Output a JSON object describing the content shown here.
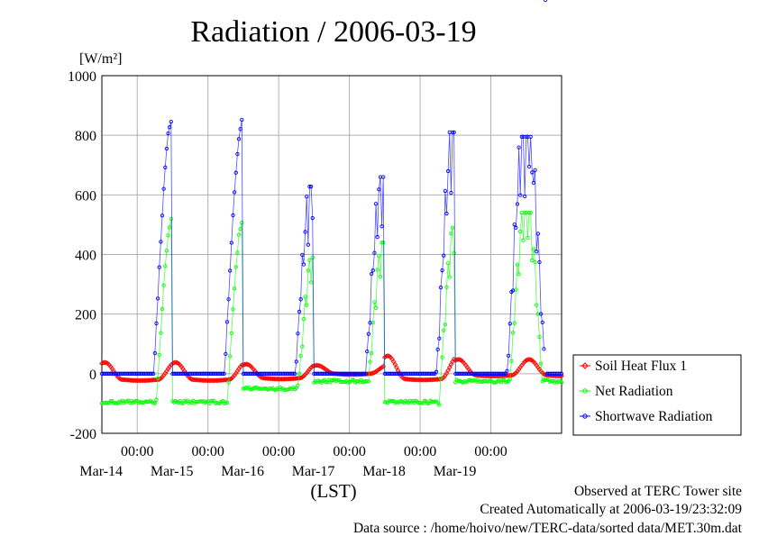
{
  "chart_data": {
    "type": "line",
    "title": "Radiation / 2006-03-19",
    "ylabel": "[W/m²]",
    "xlabel": "(LST)",
    "ylim": [
      -200,
      1000
    ],
    "y_ticks": [
      "1000",
      "800",
      "600",
      "400",
      "200",
      "0",
      "-200"
    ],
    "x_time_ticks": [
      "00:00",
      "00:00",
      "00:00",
      "00:00",
      "00:00",
      "00:00"
    ],
    "x_date_labels": [
      "Mar-14",
      "Mar-15",
      "Mar-16",
      "Mar-17",
      "Mar-18",
      "Mar-19"
    ],
    "x_start": "2006-03-13 12:00",
    "x_end": "2006-03-20 00:00",
    "grid": true,
    "legend_position": "right",
    "series": [
      {
        "name": "Soil Heat Flux 1",
        "color": "#ff0000",
        "shape": "diamond",
        "days": [
          {
            "base": -20,
            "peak": 38
          },
          {
            "base": -20,
            "peak": 38
          },
          {
            "base": -15,
            "peak": 32
          },
          {
            "base": 0,
            "peak": 28
          },
          {
            "base": -18,
            "peak": 60
          },
          {
            "base": -5,
            "peak": 48
          }
        ]
      },
      {
        "name": "Net Radiation",
        "color": "#00ff00",
        "shape": "circle",
        "days": [
          {
            "base": -95,
            "peak": 525
          },
          {
            "base": -95,
            "peak": 520
          },
          {
            "base": -50,
            "peak": 390
          },
          {
            "base": -25,
            "peak": 440
          },
          {
            "base": -95,
            "peak": 490
          },
          {
            "base": -25,
            "peak": 540
          }
        ]
      },
      {
        "name": "Shortwave Radiation",
        "color": "#0000ff",
        "shape": "circle",
        "days": [
          {
            "base": 0,
            "peak": 862
          },
          {
            "base": 0,
            "peak": 852
          },
          {
            "base": 0,
            "peak": 628
          },
          {
            "base": 0,
            "peak": 660
          },
          {
            "base": 0,
            "peak": 810
          },
          {
            "base": 0,
            "peak": 795
          }
        ]
      }
    ]
  },
  "footer": {
    "line1": "Observed at TERC Tower site",
    "line2": "Created Automatically at 2006-03-19/23:32:09",
    "line3": "Data source : /home/hoivo/new/TERC-data/sorted  data/MET.30m.dat"
  }
}
